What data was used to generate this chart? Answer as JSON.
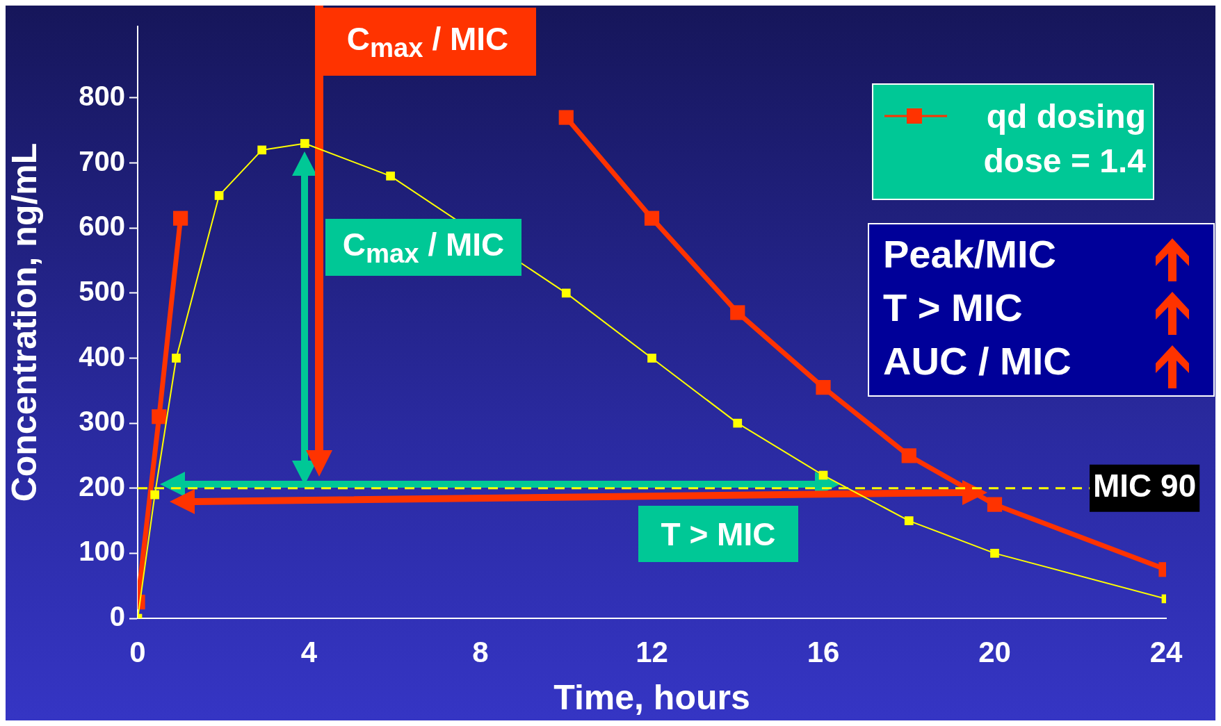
{
  "chart_data": {
    "type": "line",
    "xlabel": "Time, hours",
    "ylabel": "Concentration, ng/mL",
    "xlim": [
      0,
      24
    ],
    "xticks": [
      0,
      4,
      8,
      12,
      16,
      20,
      24
    ],
    "ylim": [
      0,
      910
    ],
    "yticks": [
      0,
      100,
      200,
      300,
      400,
      500,
      600,
      700,
      800
    ],
    "series": [
      {
        "name": "qd dosing dose = 1.4",
        "color": "#ff3300",
        "x": [
          0,
          0.5,
          1,
          4,
          10,
          12,
          14,
          16,
          18,
          20,
          24
        ],
        "values": [
          25,
          310,
          615,
          null,
          770,
          615,
          470,
          355,
          250,
          175,
          75
        ]
      },
      {
        "color": "#ffff00",
        "x": [
          0,
          0.4,
          0.9,
          1.9,
          2.9,
          3.9,
          5.9,
          10,
          12,
          14,
          16,
          18,
          20,
          24
        ],
        "values": [
          0,
          190,
          400,
          650,
          720,
          730,
          680,
          500,
          400,
          300,
          220,
          150,
          100,
          30
        ]
      }
    ],
    "ref_lines": [
      {
        "axis": "y",
        "value": 200,
        "label": "MIC 90",
        "color": "#ffff00",
        "line_style": "dashed"
      }
    ],
    "annotations": [
      "C$_{max}$ / MIC",
      "C$_{max}$ / MIC",
      "T > MIC",
      "Peak/MIC",
      "T > MIC",
      "AUC / MIC"
    ],
    "legend": "top right",
    "grid": false,
    "marker": "square",
    "line_style": "solid"
  }
}
